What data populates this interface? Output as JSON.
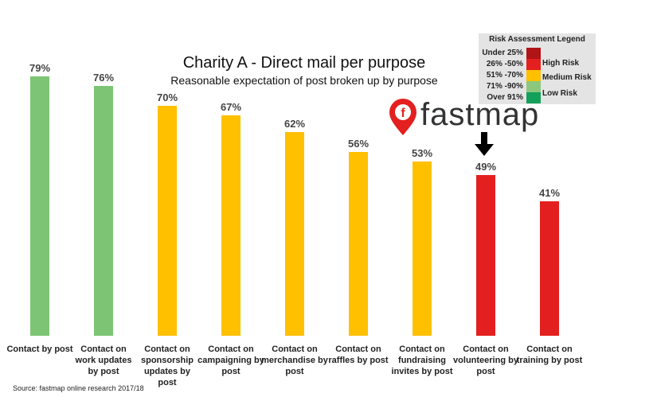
{
  "chart_data": {
    "type": "bar",
    "title": "Charity A - Direct mail per purpose",
    "subtitle": "Reasonable expectation of post broken up by purpose",
    "categories": [
      "Contact by post",
      "Contact on work updates by post",
      "Contact on sponsorship updates by post",
      "Contact on campaigning by post",
      "Contact on merchandise by post",
      "Contact on raffles by post",
      "Contact on fundraising invites by post",
      "Contact on volunteering by post",
      "Contact on training by post"
    ],
    "values": [
      79,
      76,
      70,
      67,
      62,
      56,
      53,
      49,
      41
    ],
    "value_labels": [
      "79%",
      "76%",
      "70%",
      "67%",
      "62%",
      "56%",
      "53%",
      "49%",
      "41%"
    ],
    "colors": [
      "#7dc474",
      "#7dc474",
      "#ffc000",
      "#ffc000",
      "#ffc000",
      "#ffc000",
      "#ffc000",
      "#e3201f",
      "#e3201f"
    ],
    "source": "Source: fastmap online research 2017/18",
    "legend": {
      "title": "Risk Assessment Legend",
      "ranges": [
        {
          "label": "Under 25%",
          "color": "#b01416"
        },
        {
          "label": "26% -50%",
          "color": "#e3201f"
        },
        {
          "label": "51% -70%",
          "color": "#ffc000"
        },
        {
          "label": "71% -90%",
          "color": "#8cc77e"
        },
        {
          "label": "Over 91%",
          "color": "#12a05a"
        }
      ],
      "risks": [
        "High Risk",
        "Medium Risk",
        "Low Risk"
      ]
    },
    "logo": "fastmap"
  }
}
